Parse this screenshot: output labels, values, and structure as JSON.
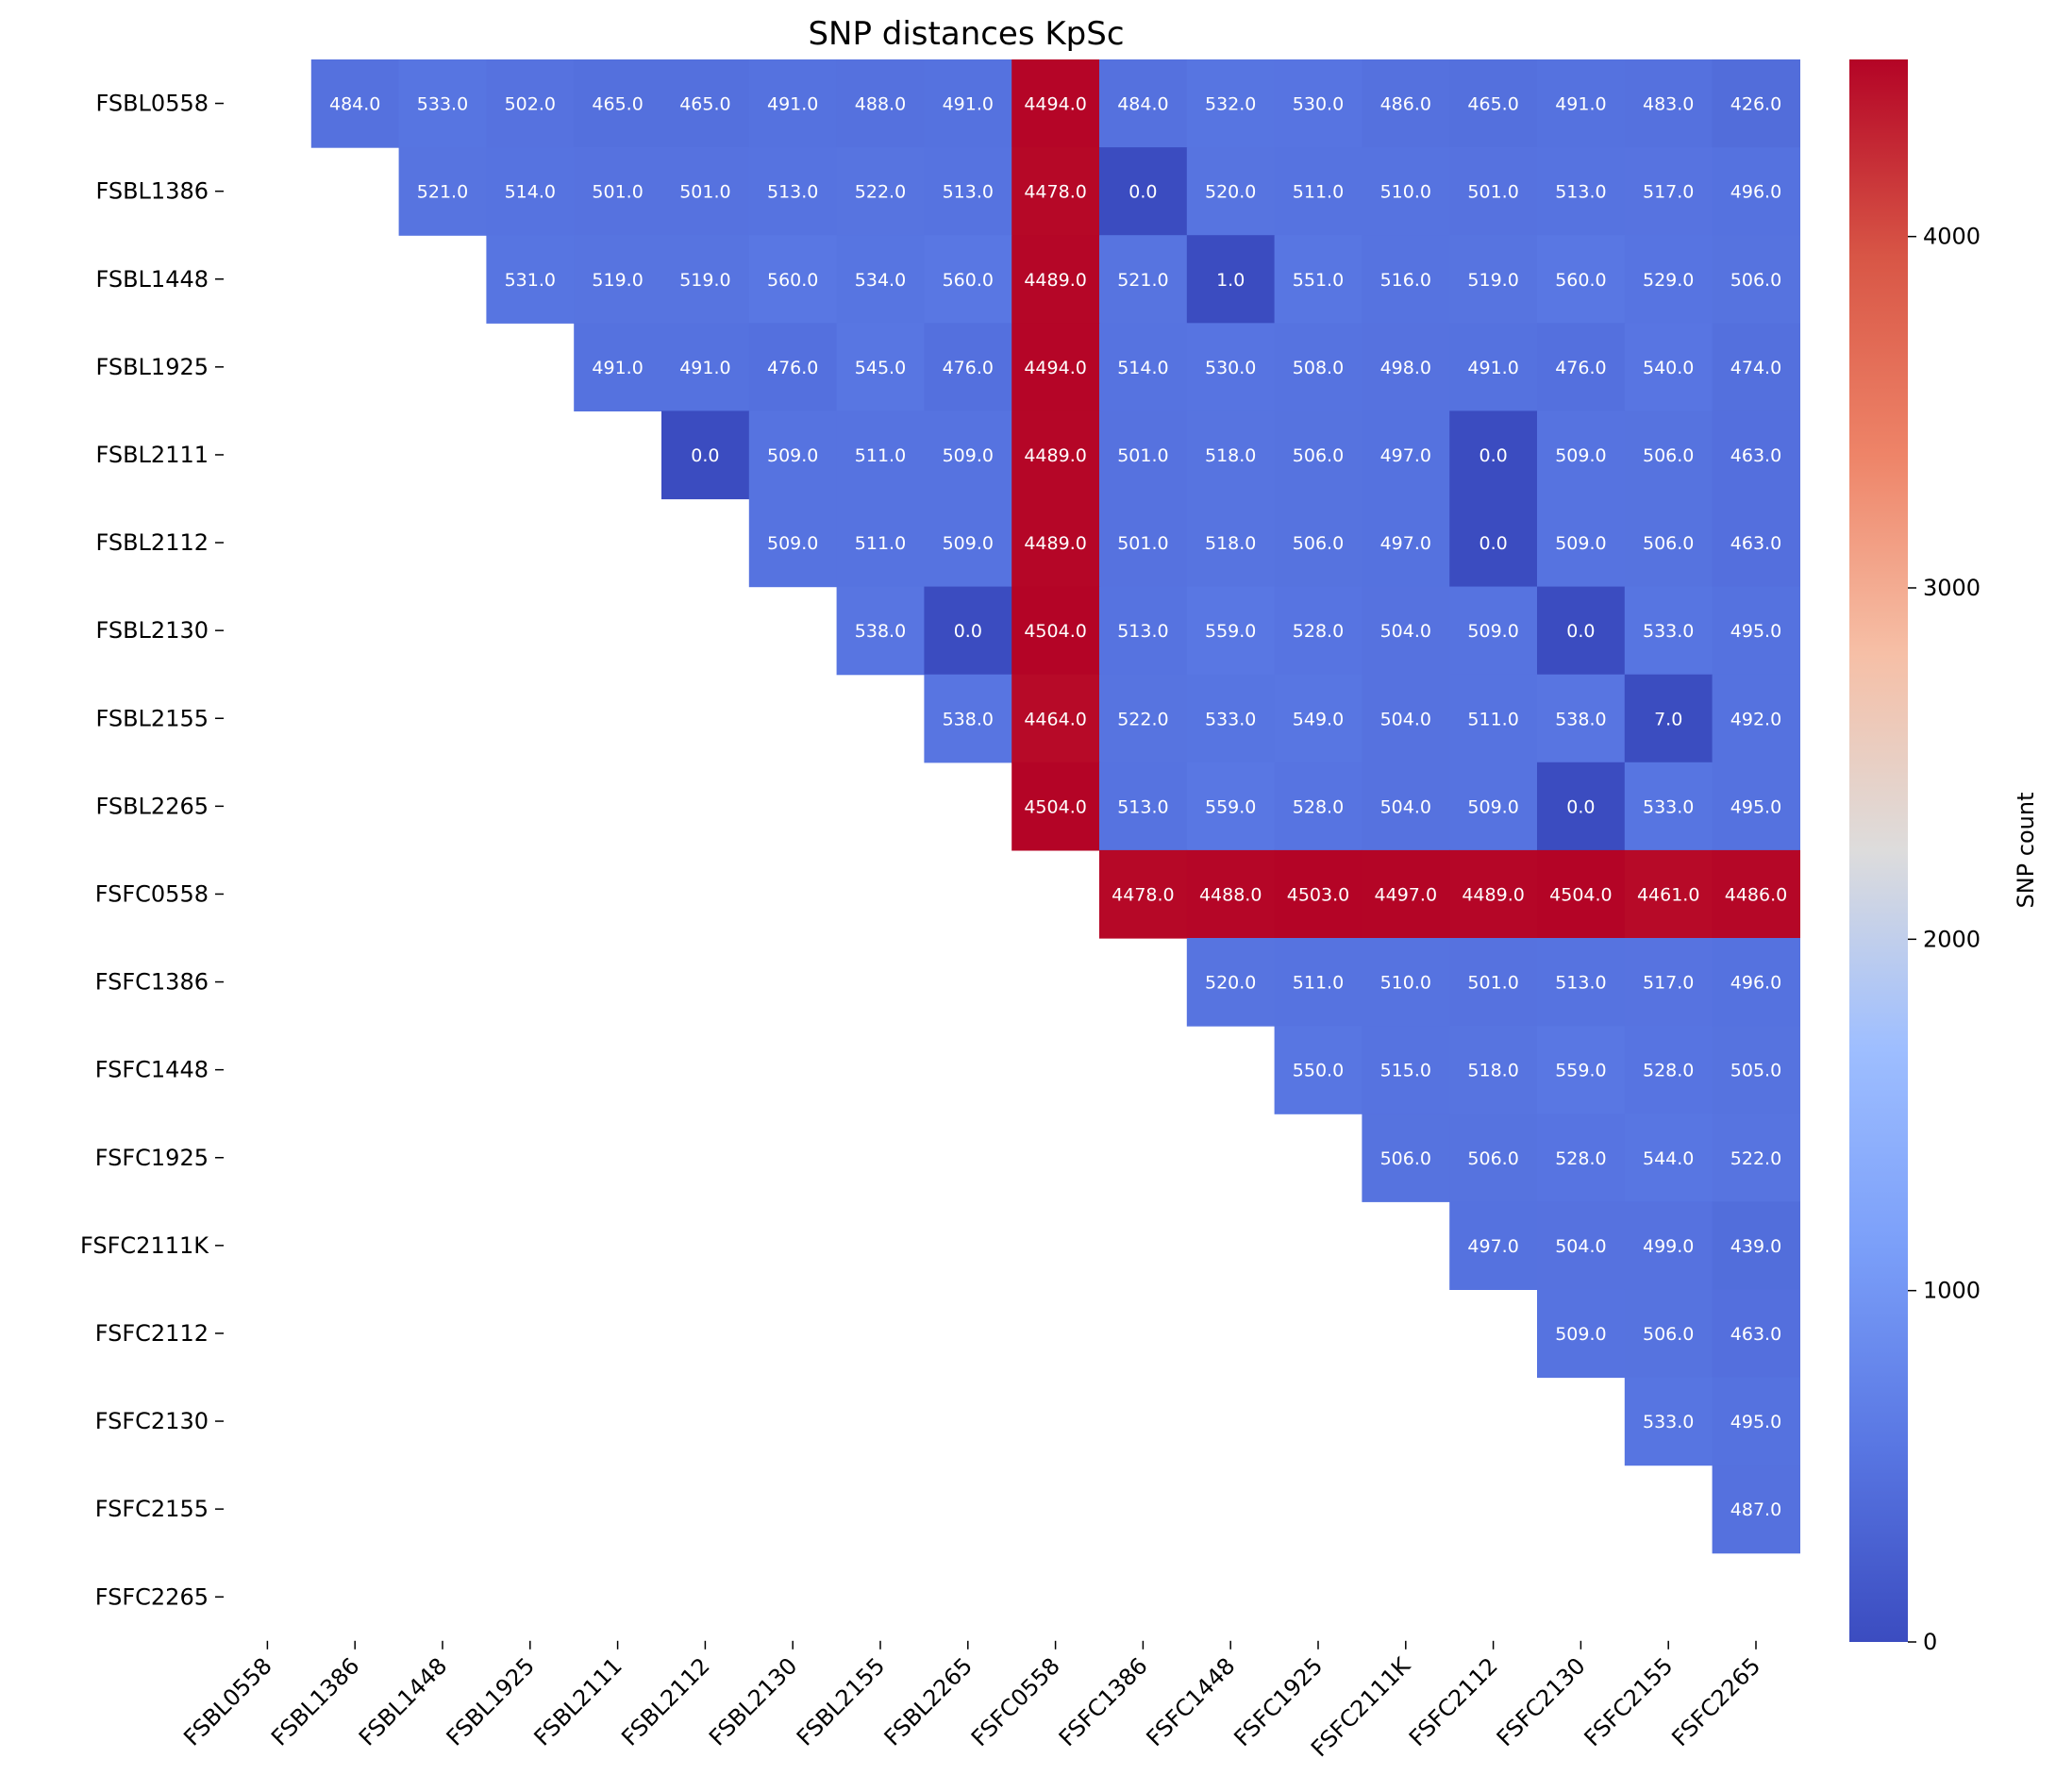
{
  "chart_data": {
    "type": "heatmap",
    "title": "SNP distances KpSc",
    "labels": [
      "FSBL0558",
      "FSBL1386",
      "FSBL1448",
      "FSBL1925",
      "FSBL2111",
      "FSBL2112",
      "FSBL2130",
      "FSBL2155",
      "FSBL2265",
      "FSFC0558",
      "FSFC1386",
      "FSFC1448",
      "FSFC1925",
      "FSFC2111K",
      "FSFC2112",
      "FSFC2130",
      "FSFC2155",
      "FSFC2265"
    ],
    "value_format": "one-decimal",
    "upper_triangle_rows": [
      [
        484,
        533,
        502,
        465,
        465,
        491,
        488,
        491,
        4494,
        484,
        532,
        530,
        486,
        465,
        491,
        483,
        426
      ],
      [
        521,
        514,
        501,
        501,
        513,
        522,
        513,
        4478,
        0,
        520,
        511,
        510,
        501,
        513,
        517,
        496
      ],
      [
        531,
        519,
        519,
        560,
        534,
        560,
        4489,
        521,
        1,
        551,
        516,
        519,
        560,
        529,
        506
      ],
      [
        491,
        491,
        476,
        545,
        476,
        4494,
        514,
        530,
        508,
        498,
        491,
        476,
        540,
        474
      ],
      [
        0,
        509,
        511,
        509,
        4489,
        501,
        518,
        506,
        497,
        0,
        509,
        506,
        463
      ],
      [
        509,
        511,
        509,
        4489,
        501,
        518,
        506,
        497,
        0,
        509,
        506,
        463
      ],
      [
        538,
        0,
        4504,
        513,
        559,
        528,
        504,
        509,
        0,
        533,
        495
      ],
      [
        538,
        4464,
        522,
        533,
        549,
        504,
        511,
        538,
        7,
        492
      ],
      [
        4504,
        513,
        559,
        528,
        504,
        509,
        0,
        533,
        495
      ],
      [
        4478,
        4488,
        4503,
        4497,
        4489,
        4504,
        4461,
        4486
      ],
      [
        520,
        511,
        510,
        501,
        513,
        517,
        496
      ],
      [
        550,
        515,
        518,
        559,
        528,
        505
      ],
      [
        506,
        506,
        528,
        544,
        522
      ],
      [
        497,
        504,
        499,
        439
      ],
      [
        509,
        506,
        463
      ],
      [
        533,
        495
      ],
      [
        487
      ],
      []
    ],
    "colormap": "coolwarm",
    "vmin": 0,
    "vmax": 4504,
    "colorbar": {
      "label": "SNP count",
      "ticks": [
        0,
        1000,
        2000,
        3000,
        4000
      ]
    }
  }
}
